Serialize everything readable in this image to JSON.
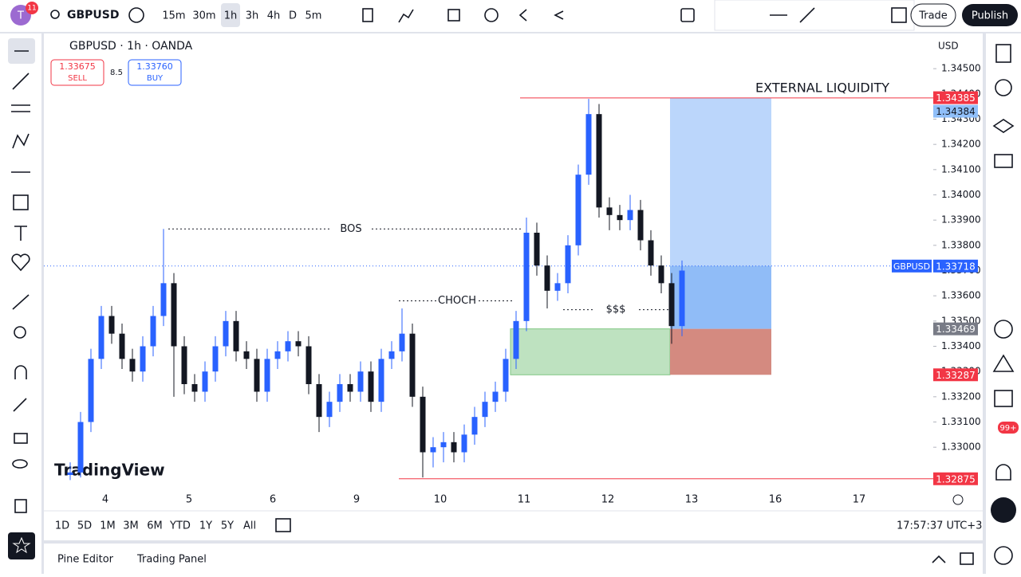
{
  "header": {
    "avatar_badge": "11",
    "symbol": "GBPUSD",
    "intervals": [
      "15m",
      "30m",
      "1h",
      "3h",
      "4h",
      "D",
      "5m"
    ],
    "trade": "Trade",
    "publish": "Publish"
  },
  "legend": {
    "title": "GBPUSD · 1h · OANDA",
    "sell_price": "1.33675",
    "sell": "SELL",
    "spread": "8.5",
    "buy_price": "1.33760",
    "buy": "BUY"
  },
  "chart": {
    "type": "candlestick",
    "currency": "USD",
    "watermark": "TradingView",
    "up_color": "#2962ff",
    "down_color": "#131722",
    "ylim": [
      1.3283,
      1.3463
    ],
    "yticks": [
      {
        "value": 1.345,
        "label": "1.34500"
      },
      {
        "value": 1.344,
        "label": "1.34400"
      },
      {
        "value": 1.343,
        "label": "1.34300"
      },
      {
        "value": 1.342,
        "label": "1.34200"
      },
      {
        "value": 1.341,
        "label": "1.34100"
      },
      {
        "value": 1.34,
        "label": "1.34000"
      },
      {
        "value": 1.339,
        "label": "1.33900"
      },
      {
        "value": 1.338,
        "label": "1.33800"
      },
      {
        "value": 1.337,
        "label": "1.33700"
      },
      {
        "value": 1.336,
        "label": "1.33600"
      },
      {
        "value": 1.335,
        "label": "1.33500"
      },
      {
        "value": 1.334,
        "label": "1.33400"
      },
      {
        "value": 1.333,
        "label": "1.33300"
      },
      {
        "value": 1.332,
        "label": "1.33200"
      },
      {
        "value": 1.331,
        "label": "1.33100"
      },
      {
        "value": 1.33,
        "label": "1.33000"
      }
    ],
    "x_labels": [
      "4",
      "5",
      "6",
      "9",
      "10",
      "11",
      "12",
      "13",
      "16",
      "17"
    ],
    "candles": [
      [
        1.3289,
        1.3294,
        1.3287,
        1.329
      ],
      [
        1.329,
        1.3314,
        1.3288,
        1.331
      ],
      [
        1.331,
        1.3339,
        1.3306,
        1.3335
      ],
      [
        1.3335,
        1.3356,
        1.3331,
        1.3352
      ],
      [
        1.3352,
        1.3356,
        1.3341,
        1.3345
      ],
      [
        1.3345,
        1.3349,
        1.3331,
        1.3335
      ],
      [
        1.3335,
        1.3339,
        1.3326,
        1.333
      ],
      [
        1.333,
        1.3344,
        1.3326,
        1.334
      ],
      [
        1.334,
        1.3356,
        1.3336,
        1.3352
      ],
      [
        1.3352,
        1.33865,
        1.3348,
        1.3365
      ],
      [
        1.3365,
        1.3369,
        1.332,
        1.334
      ],
      [
        1.334,
        1.3344,
        1.3321,
        1.3325
      ],
      [
        1.3325,
        1.3329,
        1.3318,
        1.3322
      ],
      [
        1.3322,
        1.3334,
        1.3318,
        1.333
      ],
      [
        1.333,
        1.3344,
        1.3326,
        1.334
      ],
      [
        1.334,
        1.3354,
        1.3336,
        1.335
      ],
      [
        1.335,
        1.3354,
        1.3334,
        1.3338
      ],
      [
        1.3338,
        1.3342,
        1.3331,
        1.3335
      ],
      [
        1.3335,
        1.3339,
        1.3318,
        1.3322
      ],
      [
        1.3322,
        1.3339,
        1.3318,
        1.3335
      ],
      [
        1.3335,
        1.3342,
        1.3331,
        1.3338
      ],
      [
        1.3338,
        1.3346,
        1.3334,
        1.3342
      ],
      [
        1.3342,
        1.3346,
        1.3336,
        1.334
      ],
      [
        1.334,
        1.3344,
        1.3321,
        1.3325
      ],
      [
        1.3325,
        1.3329,
        1.3306,
        1.3312
      ],
      [
        1.3312,
        1.3322,
        1.3308,
        1.3318
      ],
      [
        1.3318,
        1.3329,
        1.3314,
        1.3325
      ],
      [
        1.3325,
        1.3329,
        1.3318,
        1.3322
      ],
      [
        1.3322,
        1.3334,
        1.3318,
        1.333
      ],
      [
        1.333,
        1.3334,
        1.3314,
        1.3318
      ],
      [
        1.3318,
        1.3339,
        1.3314,
        1.3335
      ],
      [
        1.3335,
        1.3342,
        1.3331,
        1.3338
      ],
      [
        1.3338,
        1.3355,
        1.3334,
        1.3345
      ],
      [
        1.3345,
        1.3349,
        1.3316,
        1.332
      ],
      [
        1.332,
        1.3324,
        1.3288,
        1.3298
      ],
      [
        1.3298,
        1.3304,
        1.3292,
        1.33
      ],
      [
        1.33,
        1.3306,
        1.3294,
        1.3302
      ],
      [
        1.3302,
        1.3306,
        1.3294,
        1.3298
      ],
      [
        1.3298,
        1.3309,
        1.3294,
        1.3305
      ],
      [
        1.3305,
        1.3316,
        1.3301,
        1.3312
      ],
      [
        1.3312,
        1.3322,
        1.3308,
        1.3318
      ],
      [
        1.3318,
        1.3326,
        1.3314,
        1.3322
      ],
      [
        1.3322,
        1.3339,
        1.3318,
        1.3335
      ],
      [
        1.3335,
        1.3354,
        1.3331,
        1.335
      ],
      [
        1.335,
        1.3391,
        1.3346,
        1.3385
      ],
      [
        1.3385,
        1.3389,
        1.3368,
        1.3372
      ],
      [
        1.3372,
        1.3376,
        1.3355,
        1.3362
      ],
      [
        1.3362,
        1.3369,
        1.3358,
        1.3365
      ],
      [
        1.3365,
        1.3384,
        1.3361,
        1.338
      ],
      [
        1.338,
        1.3412,
        1.3376,
        1.3408
      ],
      [
        1.3408,
        1.3438,
        1.3404,
        1.3432
      ],
      [
        1.3432,
        1.3436,
        1.3391,
        1.3395
      ],
      [
        1.3395,
        1.3399,
        1.3386,
        1.3392
      ],
      [
        1.3392,
        1.3396,
        1.3386,
        1.339
      ],
      [
        1.339,
        1.34,
        1.3386,
        1.3394
      ],
      [
        1.3394,
        1.3398,
        1.3378,
        1.3382
      ],
      [
        1.3382,
        1.3386,
        1.3368,
        1.3372
      ],
      [
        1.3372,
        1.3376,
        1.3361,
        1.3365
      ],
      [
        1.3365,
        1.3369,
        1.3341,
        1.3348
      ],
      [
        1.3348,
        1.3374,
        1.3344,
        1.337
      ]
    ],
    "annotations": [
      {
        "text": "BOS",
        "price": 1.33865
      },
      {
        "text": "CHOCH",
        "price": 1.3358
      },
      {
        "text": "$$$",
        "price": 1.33545
      },
      {
        "text": "EXTERNAL LIQUIDITY",
        "price": 1.34384
      }
    ],
    "demand_zone": {
      "top": 1.33469,
      "bottom": 1.33287,
      "color": "#b7dfb9"
    },
    "long_position": {
      "entry": 1.33469,
      "target": 1.34384,
      "stop": 1.33287,
      "current": 1.33718
    },
    "low_line": 1.32875,
    "price_tags": [
      {
        "value": 1.34385,
        "color": "#f23645"
      },
      {
        "value": 1.34384,
        "color": "#90bff9"
      },
      {
        "name": "GBPUSD",
        "value": 1.33718,
        "color": "#2962ff"
      },
      {
        "value": 1.33469,
        "color": "#787b86"
      },
      {
        "value": 1.33287,
        "color": "#f23645"
      },
      {
        "value": 1.32875,
        "color": "#f23645"
      }
    ]
  },
  "footer": {
    "ranges": [
      "1D",
      "5D",
      "1M",
      "3M",
      "6M",
      "YTD",
      "1Y",
      "5Y",
      "All"
    ],
    "clock": "17:57:37 UTC+3",
    "tabs": [
      "Pine Editor",
      "Trading Panel"
    ],
    "badge": "99+"
  }
}
